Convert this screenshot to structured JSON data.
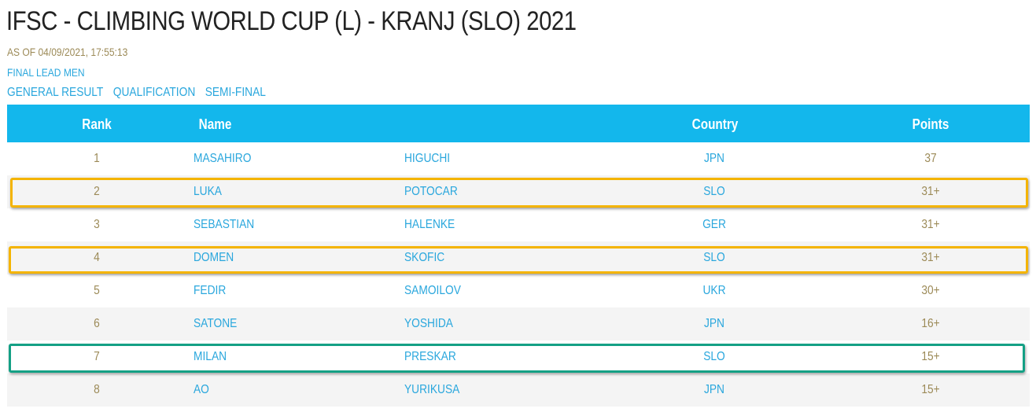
{
  "page": {
    "title": "IFSC - CLIMBING WORLD CUP (L) - KRANJ (SLO) 2021",
    "as_of": "AS OF 04/09/2021, 17:55:13",
    "subtitle": "FINAL LEAD MEN"
  },
  "tabs": [
    {
      "label": "GENERAL RESULT"
    },
    {
      "label": "QUALIFICATION"
    },
    {
      "label": "SEMI-FINAL"
    }
  ],
  "table": {
    "headers": {
      "rank": "Rank",
      "name": "Name",
      "country": "Country",
      "points": "Points"
    },
    "rows": [
      {
        "rank": "1",
        "first": "MASAHIRO",
        "last": "HIGUCHI",
        "country": "JPN",
        "points": "37"
      },
      {
        "rank": "2",
        "first": "LUKA",
        "last": "POTOCAR",
        "country": "SLO",
        "points": "31+"
      },
      {
        "rank": "3",
        "first": "SEBASTIAN",
        "last": "HALENKE",
        "country": "GER",
        "points": "31+"
      },
      {
        "rank": "4",
        "first": "DOMEN",
        "last": "SKOFIC",
        "country": "SLO",
        "points": "31+"
      },
      {
        "rank": "5",
        "first": "FEDIR",
        "last": "SAMOILOV",
        "country": "UKR",
        "points": "30+"
      },
      {
        "rank": "6",
        "first": "SATONE",
        "last": "YOSHIDA",
        "country": "JPN",
        "points": "16+"
      },
      {
        "rank": "7",
        "first": "MILAN",
        "last": "PRESKAR",
        "country": "SLO",
        "points": "15+"
      },
      {
        "rank": "8",
        "first": "AO",
        "last": "YURIKUSA",
        "country": "JPN",
        "points": "15+"
      }
    ]
  },
  "colors": {
    "header_bg": "#13b7ec",
    "link_blue": "#2aa7dd",
    "gold_text": "#9c8a57",
    "highlight_yellow": "#f4b400",
    "highlight_teal": "#14a085"
  }
}
